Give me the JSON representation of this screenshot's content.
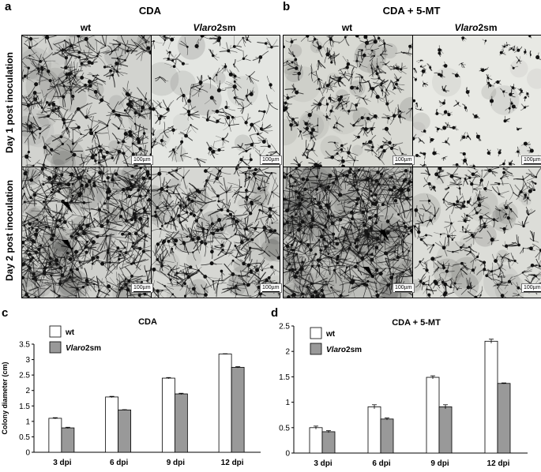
{
  "panel_a": {
    "letter": "a",
    "title": "CDA",
    "col_wt": "wt",
    "col_mut_italic": "Vlaro",
    "col_mut_rest": "2sm"
  },
  "panel_b": {
    "letter": "b",
    "title": "CDA + 5-MT",
    "col_wt": "wt",
    "col_mut_italic": "Vlaro",
    "col_mut_rest": "2sm"
  },
  "row_labels": {
    "day1": "Day 1 post inoculation",
    "day2": "Day 2 post inoculation"
  },
  "scale_label": "100µm",
  "panel_c": {
    "letter": "c"
  },
  "panel_d": {
    "letter": "d"
  },
  "chart_data": [
    {
      "type": "bar",
      "title": "CDA",
      "ylabel": "Colony diameter (cm)",
      "xlabel": "",
      "categories": [
        "3 dpi",
        "6 dpi",
        "9 dpi",
        "12 dpi"
      ],
      "ylim": [
        0,
        3.5
      ],
      "yticks": [
        "0",
        "0.5",
        "1",
        "1.5",
        "2",
        "2.5",
        "3",
        "3.5"
      ],
      "series": [
        {
          "name": "wt",
          "color": "#ffffff",
          "values": [
            1.1,
            1.79,
            2.4,
            3.18
          ],
          "errors": [
            0.02,
            0.02,
            0.02,
            0.01
          ]
        },
        {
          "name_italic": "Vlaro",
          "name": "2sm",
          "color": "#999999",
          "values": [
            0.79,
            1.37,
            1.89,
            2.75
          ],
          "errors": [
            0.02,
            0.01,
            0.02,
            0.02
          ]
        }
      ],
      "legend": "top-left"
    },
    {
      "type": "bar",
      "title": "CDA + 5-MT",
      "ylabel": "",
      "xlabel": "",
      "categories": [
        "3 dpi",
        "6 dpi",
        "9 dpi",
        "12 dpi"
      ],
      "ylim": [
        0,
        2.5
      ],
      "yticks": [
        "0",
        "0.5",
        "1",
        "1.5",
        "2",
        "2.5"
      ],
      "series": [
        {
          "name": "wt",
          "color": "#ffffff",
          "values": [
            0.5,
            0.91,
            1.49,
            2.2
          ],
          "errors": [
            0.03,
            0.04,
            0.03,
            0.04
          ]
        },
        {
          "name_italic": "Vlaro",
          "name": "2sm",
          "color": "#999999",
          "values": [
            0.42,
            0.67,
            0.91,
            1.37
          ],
          "errors": [
            0.02,
            0.02,
            0.04,
            0.01
          ]
        }
      ],
      "legend": "top-left"
    }
  ]
}
